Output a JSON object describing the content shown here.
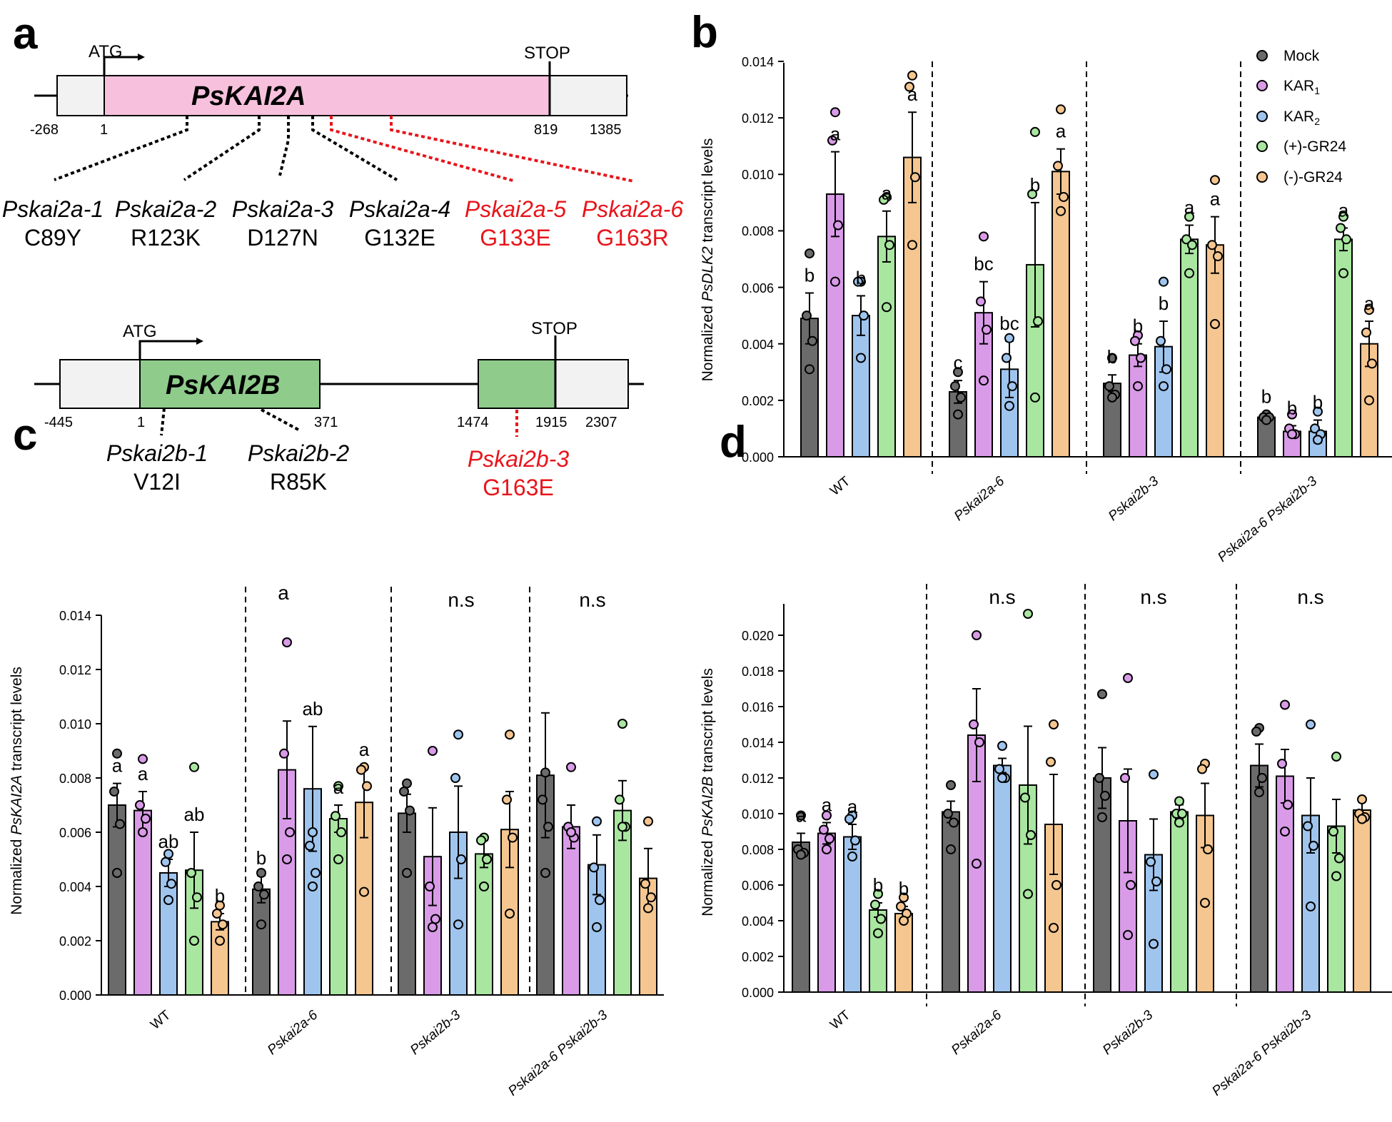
{
  "colors": {
    "mock": "#6b6b6b",
    "kar1": "#d99be8",
    "kar2": "#9fc5ee",
    "pgr24": "#a9e6a0",
    "mgr24": "#f5c690",
    "red": "#e8141b",
    "pink": "#f7c1dd",
    "green": "#8fcc8c",
    "utr": "#f2f2f2"
  },
  "panel_a": {
    "label": "a",
    "gene1": {
      "name": "PsKAI2A",
      "atg": "ATG",
      "stop": "STOP",
      "pos": [
        "-268",
        "1",
        "819",
        "1385"
      ],
      "alleles": [
        {
          "name": "Pskai2a-1",
          "mut": "C89Y",
          "red": false
        },
        {
          "name": "Pskai2a-2",
          "mut": "R123K",
          "red": false
        },
        {
          "name": "Pskai2a-3",
          "mut": "D127N",
          "red": false
        },
        {
          "name": "Pskai2a-4",
          "mut": "G132E",
          "red": false
        },
        {
          "name": "Pskai2a-5",
          "mut": "G133E",
          "red": true
        },
        {
          "name": "Pskai2a-6",
          "mut": "G163R",
          "red": true
        }
      ]
    },
    "gene2": {
      "name": "PsKAI2B",
      "atg": "ATG",
      "stop": "STOP",
      "pos": [
        "-445",
        "1",
        "371",
        "1474",
        "1915",
        "2307"
      ],
      "alleles": [
        {
          "name": "Pskai2b-1",
          "mut": "V12I",
          "red": false
        },
        {
          "name": "Pskai2b-2",
          "mut": "R85K",
          "red": false
        },
        {
          "name": "Pskai2b-3",
          "mut": "G163E",
          "red": true
        }
      ]
    }
  },
  "chart_data": [
    {
      "panel": "b",
      "type": "bar",
      "ylabel_pre": "Normalized ",
      "ylabel_gene": "PsDLK2",
      "ylabel_post": " transcript levels",
      "ylim": [
        0,
        0.014
      ],
      "yticks": [
        "0.000",
        "0.002",
        "0.004",
        "0.006",
        "0.008",
        "0.010",
        "0.012",
        "0.014"
      ],
      "groups": [
        "WT",
        "Pskai2a-6",
        "Pskai2b-3",
        "Pskai2a-6 Pskai2b-3"
      ],
      "legend": [
        "Mock",
        "KAR1",
        "KAR2",
        "(+)-GR24",
        "(-)-GR24"
      ],
      "series": [
        {
          "group": "WT",
          "means": [
            0.0049,
            0.0093,
            0.005,
            0.0078,
            0.0106
          ],
          "errors": [
            0.0009,
            0.0015,
            0.0007,
            0.0009,
            0.0016
          ],
          "letters": [
            "b",
            "a",
            "b",
            "a",
            "a"
          ],
          "points": [
            [
              0.0072,
              0.005,
              0.0041,
              0.0031
            ],
            [
              0.0122,
              0.0112,
              0.0082,
              0.0062
            ],
            [
              0.0062,
              0.0062,
              0.005,
              0.0035
            ],
            [
              0.0092,
              0.0091,
              0.0075,
              0.0053
            ],
            [
              0.0135,
              0.0131,
              0.0099,
              0.0075
            ]
          ]
        },
        {
          "group": "Pskai2a-6",
          "means": [
            0.0023,
            0.0051,
            0.0031,
            0.0068,
            0.0101
          ],
          "errors": [
            0.0004,
            0.0011,
            0.001,
            0.0022,
            0.0008
          ],
          "letters": [
            "c",
            "bc",
            "bc",
            "b",
            "a"
          ],
          "points": [
            [
              0.003,
              0.0025,
              0.0021,
              0.0015
            ],
            [
              0.0078,
              0.0055,
              0.0045,
              0.0027
            ],
            [
              0.0042,
              0.0035,
              0.0025,
              0.0018
            ],
            [
              0.0115,
              0.0093,
              0.0048,
              0.0021
            ],
            [
              0.0123,
              0.0103,
              0.0092,
              0.0087
            ]
          ]
        },
        {
          "group": "Pskai2b-3",
          "means": [
            0.0026,
            0.0036,
            0.0039,
            0.0077,
            0.0075
          ],
          "errors": [
            0.0003,
            0.0004,
            0.0009,
            0.0005,
            0.001
          ],
          "letters": [
            "b",
            "b",
            "b",
            "a",
            "a"
          ],
          "points": [
            [
              0.0035,
              0.0025,
              0.0022,
              0.0021
            ],
            [
              0.0043,
              0.0041,
              0.0035,
              0.0025
            ],
            [
              0.0062,
              0.0041,
              0.0031,
              0.0025
            ],
            [
              0.0085,
              0.0077,
              0.0075,
              0.0065
            ],
            [
              0.0098,
              0.0075,
              0.0071,
              0.0047
            ]
          ]
        },
        {
          "group": "Pskai2a-6 Pskai2b-3",
          "means": [
            0.0014,
            0.0009,
            0.0009,
            0.0077,
            0.004
          ],
          "errors": [
            0.0001,
            0.0002,
            0.0004,
            0.0004,
            0.0008
          ],
          "letters": [
            "b",
            "b",
            "b",
            "a",
            "a"
          ],
          "points": [
            [
              0.0015,
              0.0014,
              0.0014,
              0.0013
            ],
            [
              0.0015,
              0.001,
              0.0008,
              0.0008
            ],
            [
              0.0016,
              0.001,
              0.0008,
              0.0006
            ],
            [
              0.0085,
              0.0081,
              0.0077,
              0.0065
            ],
            [
              0.0052,
              0.0044,
              0.0033,
              0.002
            ]
          ]
        }
      ]
    },
    {
      "panel": "c",
      "type": "bar",
      "ylabel_pre": "Normalized ",
      "ylabel_gene": "PsKAI2A",
      "ylabel_post": " transcript levels",
      "ylim": [
        0,
        0.014
      ],
      "yticks": [
        "0.000",
        "0.002",
        "0.004",
        "0.006",
        "0.008",
        "0.010",
        "0.012",
        "0.014"
      ],
      "groups": [
        "WT",
        "Pskai2a-6",
        "Pskai2b-3",
        "Pskai2a-6 Pskai2b-3"
      ],
      "group_notes": [
        "",
        "a",
        "n.s",
        "n.s"
      ],
      "series": [
        {
          "group": "WT",
          "means": [
            0.007,
            0.0068,
            0.0045,
            0.0046,
            0.0027
          ],
          "errors": [
            0.0008,
            0.0007,
            0.0005,
            0.0014,
            0.0003
          ],
          "letters": [
            "a",
            "a",
            "ab",
            "ab",
            "b"
          ],
          "points": [
            [
              0.0089,
              0.0075,
              0.0063,
              0.0045
            ],
            [
              0.0087,
              0.007,
              0.0065,
              0.006
            ],
            [
              0.0052,
              0.0049,
              0.0041,
              0.0035
            ],
            [
              0.0084,
              0.0045,
              0.0036,
              0.002
            ],
            [
              0.0033,
              0.003,
              0.0026,
              0.002
            ]
          ]
        },
        {
          "group": "Pskai2a-6",
          "means": [
            0.0039,
            0.0083,
            0.0076,
            0.0065,
            0.0071
          ],
          "errors": [
            0.0005,
            0.0018,
            0.0023,
            0.0005,
            0.0013
          ],
          "letters": [
            "b",
            "",
            "ab",
            "a",
            "a"
          ],
          "points": [
            [
              0.0045,
              0.004,
              0.0037,
              0.0026
            ],
            [
              0.013,
              0.0089,
              0.006,
              0.005
            ],
            [
              0.006,
              0.0055,
              0.0045,
              0.004
            ],
            [
              0.0077,
              0.0066,
              0.006,
              0.005
            ],
            [
              0.0084,
              0.0083,
              0.0077,
              0.0038
            ]
          ]
        },
        {
          "group": "Pskai2b-3",
          "means": [
            0.0067,
            0.0051,
            0.006,
            0.0052,
            0.0061
          ],
          "errors": [
            0.0007,
            0.0018,
            0.0017,
            0.0005,
            0.0014
          ],
          "letters": [
            "",
            "",
            "",
            "",
            ""
          ],
          "points": [
            [
              0.0078,
              0.0075,
              0.0068,
              0.0045
            ],
            [
              0.009,
              0.004,
              0.0028,
              0.0025
            ],
            [
              0.0096,
              0.008,
              0.005,
              0.0026
            ],
            [
              0.0058,
              0.0057,
              0.005,
              0.004
            ],
            [
              0.0096,
              0.0072,
              0.0058,
              0.003
            ]
          ]
        },
        {
          "group": "Pskai2a-6 Pskai2b-3",
          "means": [
            0.0081,
            0.0062,
            0.0048,
            0.0068,
            0.0043
          ],
          "errors": [
            0.0023,
            0.0008,
            0.0011,
            0.0011,
            0.0011
          ],
          "letters": [
            "",
            "",
            "",
            "",
            ""
          ],
          "points": [
            [
              0.0082,
              0.0072,
              0.0062,
              0.0045
            ],
            [
              0.0084,
              0.0062,
              0.0058,
              0.006
            ],
            [
              0.0064,
              0.0047,
              0.0035,
              0.0025
            ],
            [
              0.01,
              0.0072,
              0.0062,
              0.0062
            ],
            [
              0.0064,
              0.0041,
              0.0036,
              0.0032
            ]
          ]
        }
      ]
    },
    {
      "panel": "d",
      "type": "bar",
      "ylabel_pre": "Normalized ",
      "ylabel_gene": "PsKAI2B",
      "ylabel_post": " transcript levels",
      "ylim": [
        0,
        0.022
      ],
      "yticks": [
        "0.000",
        "0.002",
        "0.004",
        "0.006",
        "0.008",
        "0.010",
        "0.012",
        "0.014",
        "0.016",
        "0.018",
        "0.020"
      ],
      "groups": [
        "WT",
        "Pskai2a-6",
        "Pskai2b-3",
        "Pskai2a-6 Pskai2b-3"
      ],
      "group_notes": [
        "",
        "n.s",
        "n.s",
        "n.s"
      ],
      "series": [
        {
          "group": "WT",
          "means": [
            0.0084,
            0.0089,
            0.0087,
            0.0046,
            0.0044
          ],
          "errors": [
            0.0005,
            0.0006,
            0.0007,
            0.0004,
            0.0004
          ],
          "letters": [
            "a",
            "a",
            "a",
            "b",
            "b"
          ],
          "points": [
            [
              0.0099,
              0.008,
              0.0078,
              0.0077
            ],
            [
              0.0099,
              0.0091,
              0.0086,
              0.008
            ],
            [
              0.0099,
              0.0097,
              0.0085,
              0.0076
            ],
            [
              0.0055,
              0.0049,
              0.0041,
              0.0033
            ],
            [
              0.0053,
              0.0048,
              0.0044,
              0.004
            ]
          ]
        },
        {
          "group": "Pskai2a-6",
          "means": [
            0.0101,
            0.0144,
            0.0127,
            0.0116,
            0.0094
          ],
          "errors": [
            0.0006,
            0.0026,
            0.0004,
            0.0033,
            0.0028
          ],
          "letters": [
            "",
            "",
            "",
            "",
            ""
          ],
          "points": [
            [
              0.0116,
              0.01,
              0.0095,
              0.008
            ],
            [
              0.02,
              0.015,
              0.014,
              0.0072
            ],
            [
              0.0138,
              0.0125,
              0.012,
              0.012
            ],
            [
              0.0212,
              0.0109,
              0.0088,
              0.0055
            ],
            [
              0.015,
              0.0129,
              0.006,
              0.0036
            ]
          ]
        },
        {
          "group": "Pskai2b-3",
          "means": [
            0.012,
            0.0096,
            0.0077,
            0.0101,
            0.0099
          ],
          "errors": [
            0.0017,
            0.0029,
            0.002,
            0.0004,
            0.0018
          ],
          "letters": [
            "",
            "",
            "",
            "",
            ""
          ],
          "points": [
            [
              0.0167,
              0.012,
              0.011,
              0.0098
            ],
            [
              0.0176,
              0.012,
              0.006,
              0.0032
            ],
            [
              0.0122,
              0.0073,
              0.0062,
              0.0027
            ],
            [
              0.0107,
              0.01,
              0.01,
              0.0095
            ],
            [
              0.0128,
              0.0125,
              0.008,
              0.005
            ]
          ]
        },
        {
          "group": "Pskai2a-6 Pskai2b-3",
          "means": [
            0.0127,
            0.0121,
            0.0099,
            0.0093,
            0.0102
          ],
          "errors": [
            0.0012,
            0.0015,
            0.0021,
            0.0015,
            0.0005
          ],
          "letters": [
            "",
            "",
            "",
            "",
            ""
          ],
          "points": [
            [
              0.0148,
              0.0146,
              0.012,
              0.0112
            ],
            [
              0.0161,
              0.0128,
              0.0105,
              0.009
            ],
            [
              0.015,
              0.0093,
              0.0082,
              0.0048
            ],
            [
              0.0132,
              0.009,
              0.0075,
              0.0065
            ],
            [
              0.0108,
              0.01,
              0.0098,
              0.0097
            ]
          ]
        }
      ]
    }
  ]
}
